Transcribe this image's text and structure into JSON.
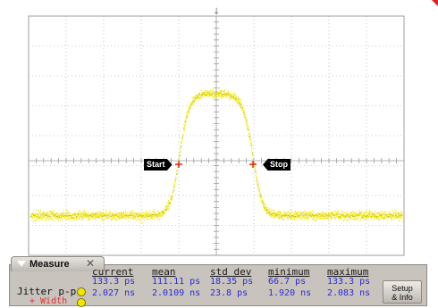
{
  "measure": {
    "tab_label": "Measure",
    "close_glyph": "✕",
    "columns": [
      "current",
      "mean",
      "std dev",
      "minimum",
      "maximum"
    ],
    "rows": [
      {
        "label": "Jitter p-p",
        "swatch_color": "#f2e600",
        "label_color": "#111111",
        "values": [
          "133.3 ps",
          "111.11 ps",
          "18.35 ps",
          "66.7 ps",
          "133.3 ps"
        ]
      },
      {
        "label": "+ Width",
        "swatch_color": "#f2e600",
        "label_color": "#e03030",
        "values": [
          "2.027 ns",
          "2.0109 ns",
          "23.8 ps",
          "1.920 ns",
          "2.083 ns"
        ]
      }
    ],
    "setup_button": "Setup\n& Info"
  },
  "markers": {
    "start_label": "Start",
    "stop_label": "Stop"
  },
  "colors": {
    "trace": "#f2e600",
    "background": "#ffffff",
    "grid": "#9e9e9e",
    "panel": "#c8c3bc"
  }
}
